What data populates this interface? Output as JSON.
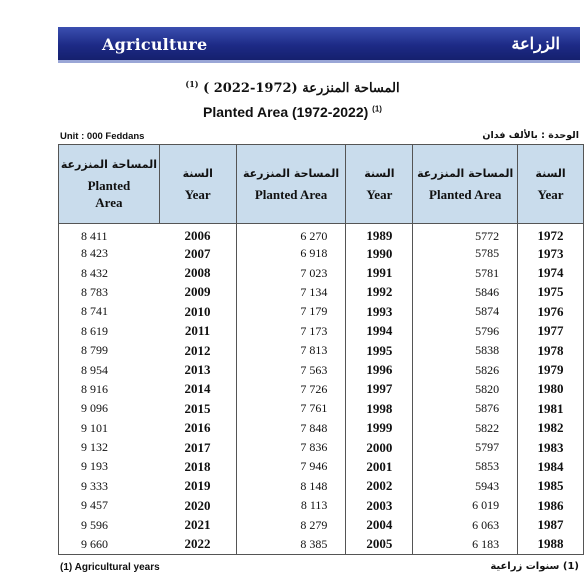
{
  "banner": {
    "title_en": "Agriculture",
    "title_ar": "الزراعة"
  },
  "title": {
    "ar": "المساحة المنزرعة (1972-2022 )",
    "ar_note": "(1)",
    "en": "Planted Area (1972-2022)",
    "en_note": "(1)"
  },
  "unit": {
    "en": "Unit : 000 Feddans",
    "ar": "الوحدة : بالألف فدان"
  },
  "headers": {
    "area_ar": "المساحة المنزرعة",
    "area_en_1": "Planted",
    "area_en_2": "Area",
    "area_en": "Planted Area",
    "year_ar": "السنة",
    "year_en": "Year"
  },
  "rows": [
    {
      "a3": "8 411",
      "y3": "2006",
      "a2": "6 270",
      "y2": "1989",
      "a1": "5772",
      "y1": "1972"
    },
    {
      "a3": "8 423",
      "y3": "2007",
      "a2": "6 918",
      "y2": "1990",
      "a1": "5785",
      "y1": "1973"
    },
    {
      "a3": "8 432",
      "y3": "2008",
      "a2": "7 023",
      "y2": "1991",
      "a1": "5781",
      "y1": "1974"
    },
    {
      "a3": "8 783",
      "y3": "2009",
      "a2": "7 134",
      "y2": "1992",
      "a1": "5846",
      "y1": "1975"
    },
    {
      "a3": "8 741",
      "y3": "2010",
      "a2": "7 179",
      "y2": "1993",
      "a1": "5874",
      "y1": "1976"
    },
    {
      "a3": "8 619",
      "y3": "2011",
      "a2": "7 173",
      "y2": "1994",
      "a1": "5796",
      "y1": "1977"
    },
    {
      "a3": "8 799",
      "y3": "2012",
      "a2": "7 813",
      "y2": "1995",
      "a1": "5838",
      "y1": "1978"
    },
    {
      "a3": "8 954",
      "y3": "2013",
      "a2": "7 563",
      "y2": "1996",
      "a1": "5826",
      "y1": "1979"
    },
    {
      "a3": "8 916",
      "y3": "2014",
      "a2": "7 726",
      "y2": "1997",
      "a1": "5820",
      "y1": "1980"
    },
    {
      "a3": "9 096",
      "y3": "2015",
      "a2": "7 761",
      "y2": "1998",
      "a1": "5876",
      "y1": "1981"
    },
    {
      "a3": "9 101",
      "y3": "2016",
      "a2": "7 848",
      "y2": "1999",
      "a1": "5822",
      "y1": "1982"
    },
    {
      "a3": "9 132",
      "y3": "2017",
      "a2": "7 836",
      "y2": "2000",
      "a1": "5797",
      "y1": "1983"
    },
    {
      "a3": "9 193",
      "y3": "2018",
      "a2": "7 946",
      "y2": "2001",
      "a1": "5853",
      "y1": "1984"
    },
    {
      "a3": "9 333",
      "y3": "2019",
      "a2": "8 148",
      "y2": "2002",
      "a1": "5943",
      "y1": "1985"
    },
    {
      "a3": "9 457",
      "y3": "2020",
      "a2": "8 113",
      "y2": "2003",
      "a1": "6 019",
      "y1": "1986"
    },
    {
      "a3": "9 596",
      "y3": "2021",
      "a2": "8 279",
      "y2": "2004",
      "a1": "6 063",
      "y1": "1987"
    },
    {
      "a3": "9 660",
      "y3": "2022",
      "a2": "8 385",
      "y2": "2005",
      "a1": "6 183",
      "y1": "1988"
    }
  ],
  "footnote": {
    "en": "(1) Agricultural years",
    "ar": "(1) سنوات زراعية"
  },
  "colors": {
    "banner": "#1d2a86",
    "header_bg": "#c9dcec"
  }
}
